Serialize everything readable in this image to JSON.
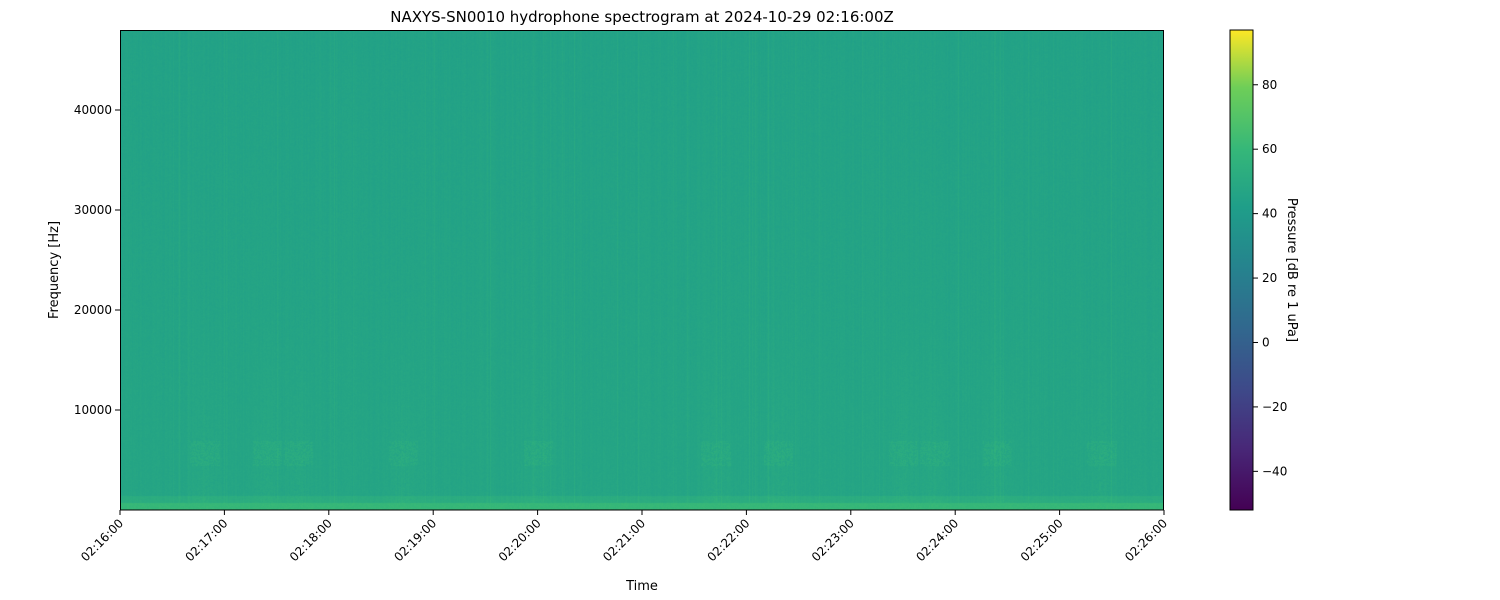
{
  "chart_data": {
    "type": "heatmap",
    "title": "NAXYS-SN0010 hydrophone spectrogram at 2024-10-29 02:16:00Z",
    "xlabel": "Time",
    "ylabel": "Frequency [Hz]",
    "x_ticks": [
      "02:16:00",
      "02:17:00",
      "02:18:00",
      "02:19:00",
      "02:20:00",
      "02:21:00",
      "02:22:00",
      "02:23:00",
      "02:24:00",
      "02:25:00",
      "02:26:00"
    ],
    "y_ticks": [
      10000,
      20000,
      30000,
      40000
    ],
    "ylim": [
      0,
      48000
    ],
    "colorbar": {
      "label": "Pressure [dB re 1 uPa]",
      "colormap": "viridis",
      "range": [
        -52,
        97
      ],
      "ticks": [
        -40,
        -20,
        0,
        20,
        40,
        60,
        80
      ]
    },
    "typical_level_db": 45,
    "low_frequency_band_level_db": 60,
    "tonal_band_hz": [
      4500,
      7000
    ],
    "grid": false
  }
}
